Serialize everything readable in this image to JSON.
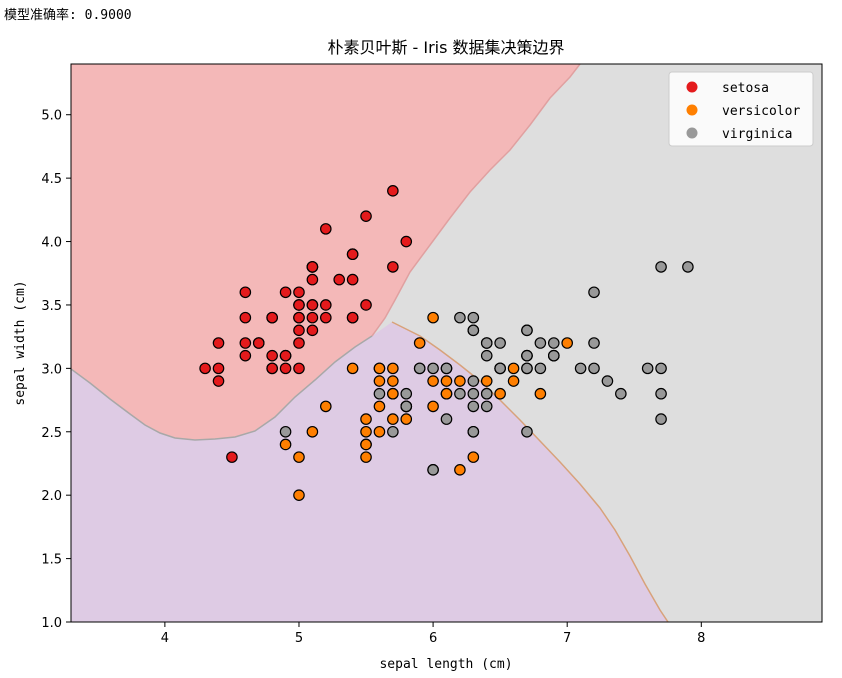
{
  "header": {
    "accuracy_text": "模型准确率: 0.9000"
  },
  "chart_data": {
    "type": "scatter",
    "title": "朴素贝叶斯 - Iris 数据集决策边界",
    "xlabel": "sepal length (cm)",
    "ylabel": "sepal width (cm)",
    "xlim": [
      3.3,
      8.9
    ],
    "ylim": [
      1.0,
      5.4
    ],
    "xticks": [
      4,
      5,
      6,
      7,
      8
    ],
    "yticks": [
      1.0,
      1.5,
      2.0,
      2.5,
      3.0,
      3.5,
      4.0,
      4.5,
      5.0
    ],
    "grid": false,
    "legend_position": "top-right",
    "region_colors": {
      "setosa": "#f4b8b8",
      "versicolor": "#decbe4",
      "virginica": "#dedede"
    },
    "series": [
      {
        "name": "setosa",
        "color": "#e41a1c",
        "points": [
          [
            5.1,
            3.5
          ],
          [
            4.9,
            3.0
          ],
          [
            4.7,
            3.2
          ],
          [
            4.6,
            3.1
          ],
          [
            5.0,
            3.6
          ],
          [
            5.4,
            3.9
          ],
          [
            4.6,
            3.4
          ],
          [
            5.0,
            3.4
          ],
          [
            4.4,
            2.9
          ],
          [
            4.9,
            3.1
          ],
          [
            5.4,
            3.7
          ],
          [
            4.8,
            3.4
          ],
          [
            4.8,
            3.0
          ],
          [
            4.3,
            3.0
          ],
          [
            5.8,
            4.0
          ],
          [
            5.7,
            4.4
          ],
          [
            5.4,
            3.9
          ],
          [
            5.1,
            3.5
          ],
          [
            5.7,
            3.8
          ],
          [
            5.1,
            3.8
          ],
          [
            5.4,
            3.4
          ],
          [
            5.1,
            3.7
          ],
          [
            4.6,
            3.6
          ],
          [
            5.1,
            3.3
          ],
          [
            4.8,
            3.4
          ],
          [
            5.0,
            3.0
          ],
          [
            5.0,
            3.4
          ],
          [
            5.2,
            3.5
          ],
          [
            5.2,
            3.4
          ],
          [
            4.7,
            3.2
          ],
          [
            4.8,
            3.1
          ],
          [
            5.4,
            3.4
          ],
          [
            5.2,
            4.1
          ],
          [
            5.5,
            4.2
          ],
          [
            4.9,
            3.1
          ],
          [
            5.0,
            3.2
          ],
          [
            5.5,
            3.5
          ],
          [
            4.9,
            3.6
          ],
          [
            4.4,
            3.0
          ],
          [
            5.1,
            3.4
          ],
          [
            5.0,
            3.5
          ],
          [
            4.5,
            2.3
          ],
          [
            4.4,
            3.2
          ],
          [
            5.0,
            3.5
          ],
          [
            5.1,
            3.8
          ],
          [
            4.8,
            3.0
          ],
          [
            5.1,
            3.8
          ],
          [
            4.6,
            3.2
          ],
          [
            5.3,
            3.7
          ],
          [
            5.0,
            3.3
          ]
        ]
      },
      {
        "name": "versicolor",
        "color": "#ff7f00",
        "points": [
          [
            7.0,
            3.2
          ],
          [
            6.4,
            3.2
          ],
          [
            6.9,
            3.1
          ],
          [
            5.5,
            2.3
          ],
          [
            6.5,
            2.8
          ],
          [
            5.7,
            2.8
          ],
          [
            6.3,
            3.3
          ],
          [
            4.9,
            2.4
          ],
          [
            6.6,
            2.9
          ],
          [
            5.2,
            2.7
          ],
          [
            5.0,
            2.0
          ],
          [
            5.9,
            3.0
          ],
          [
            6.0,
            2.2
          ],
          [
            6.1,
            2.9
          ],
          [
            5.6,
            2.9
          ],
          [
            6.7,
            3.1
          ],
          [
            5.6,
            3.0
          ],
          [
            5.8,
            2.7
          ],
          [
            6.2,
            2.2
          ],
          [
            5.6,
            2.5
          ],
          [
            5.9,
            3.2
          ],
          [
            6.1,
            2.8
          ],
          [
            6.3,
            2.5
          ],
          [
            6.1,
            2.8
          ],
          [
            6.4,
            2.9
          ],
          [
            6.6,
            3.0
          ],
          [
            6.8,
            2.8
          ],
          [
            6.7,
            3.0
          ],
          [
            6.0,
            2.9
          ],
          [
            5.7,
            2.6
          ],
          [
            5.5,
            2.4
          ],
          [
            5.5,
            2.4
          ],
          [
            5.8,
            2.7
          ],
          [
            6.0,
            2.7
          ],
          [
            5.4,
            3.0
          ],
          [
            6.0,
            3.4
          ],
          [
            6.7,
            3.1
          ],
          [
            6.3,
            2.3
          ],
          [
            5.6,
            3.0
          ],
          [
            5.5,
            2.5
          ],
          [
            5.5,
            2.6
          ],
          [
            6.1,
            3.0
          ],
          [
            5.8,
            2.6
          ],
          [
            5.0,
            2.3
          ],
          [
            5.6,
            2.7
          ],
          [
            5.7,
            3.0
          ],
          [
            5.7,
            2.9
          ],
          [
            6.2,
            2.9
          ],
          [
            5.1,
            2.5
          ],
          [
            5.7,
            2.8
          ]
        ]
      },
      {
        "name": "virginica",
        "color": "#999999",
        "points": [
          [
            6.3,
            3.3
          ],
          [
            5.8,
            2.7
          ],
          [
            7.1,
            3.0
          ],
          [
            6.3,
            2.9
          ],
          [
            6.5,
            3.0
          ],
          [
            7.6,
            3.0
          ],
          [
            4.9,
            2.5
          ],
          [
            7.3,
            2.9
          ],
          [
            6.7,
            2.5
          ],
          [
            7.2,
            3.6
          ],
          [
            6.5,
            3.2
          ],
          [
            6.4,
            2.7
          ],
          [
            6.8,
            3.0
          ],
          [
            5.7,
            2.5
          ],
          [
            5.8,
            2.8
          ],
          [
            6.4,
            3.2
          ],
          [
            6.5,
            3.0
          ],
          [
            7.7,
            3.8
          ],
          [
            7.7,
            2.6
          ],
          [
            6.0,
            2.2
          ],
          [
            6.9,
            3.2
          ],
          [
            5.6,
            2.8
          ],
          [
            7.7,
            2.8
          ],
          [
            6.3,
            2.7
          ],
          [
            6.7,
            3.3
          ],
          [
            7.2,
            3.2
          ],
          [
            6.2,
            2.8
          ],
          [
            6.1,
            3.0
          ],
          [
            6.4,
            2.8
          ],
          [
            7.2,
            3.0
          ],
          [
            7.4,
            2.8
          ],
          [
            7.9,
            3.8
          ],
          [
            6.4,
            2.8
          ],
          [
            6.3,
            2.8
          ],
          [
            6.1,
            2.6
          ],
          [
            7.7,
            3.0
          ],
          [
            6.3,
            3.4
          ],
          [
            6.4,
            3.1
          ],
          [
            6.0,
            3.0
          ],
          [
            6.9,
            3.1
          ],
          [
            6.7,
            3.1
          ],
          [
            6.9,
            3.1
          ],
          [
            5.8,
            2.7
          ],
          [
            6.8,
            3.2
          ],
          [
            6.7,
            3.3
          ],
          [
            6.7,
            3.0
          ],
          [
            6.3,
            2.5
          ],
          [
            6.5,
            3.0
          ],
          [
            6.2,
            3.4
          ],
          [
            5.9,
            3.0
          ]
        ]
      }
    ]
  }
}
